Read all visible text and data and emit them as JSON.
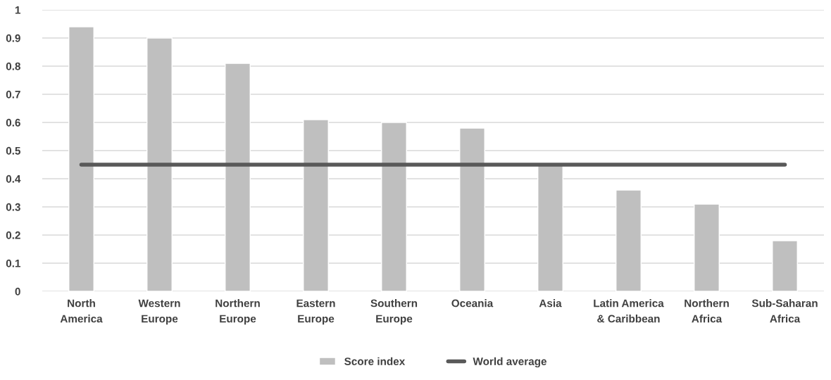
{
  "chart_data": {
    "type": "bar",
    "categories": [
      "North\nAmerica",
      "Western\nEurope",
      "Northern\nEurope",
      "Eastern\nEurope",
      "Southern\nEurope",
      "Oceania",
      "Asia",
      "Latin America\n& Caribbean",
      "Northern\nAfrica",
      "Sub-Saharan\nAfrica"
    ],
    "series": [
      {
        "name": "Score index",
        "color": "#bfbfbf",
        "values": [
          0.94,
          0.9,
          0.81,
          0.61,
          0.6,
          0.58,
          0.45,
          0.36,
          0.31,
          0.18
        ]
      },
      {
        "name": "World average",
        "type": "line",
        "color": "#595959",
        "values": [
          0.45,
          0.45,
          0.45,
          0.45,
          0.45,
          0.45,
          0.45,
          0.45,
          0.45,
          0.45
        ]
      }
    ],
    "ylim": [
      0,
      1
    ],
    "yticks": [
      0,
      0.1,
      0.2,
      0.3,
      0.4,
      0.5,
      0.6,
      0.7,
      0.8,
      0.9,
      1
    ],
    "grid": "y",
    "legend": "bottom"
  }
}
